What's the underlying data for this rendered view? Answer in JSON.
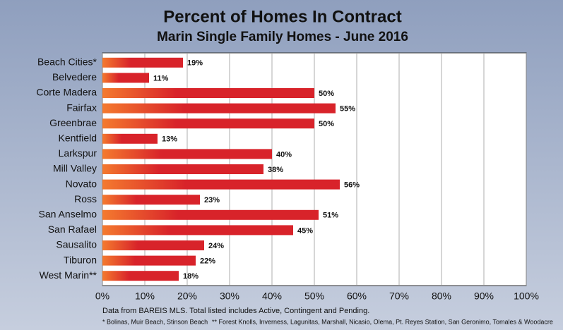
{
  "chart_data": {
    "type": "hbar",
    "title": "Percent of Homes In Contract",
    "subtitle": "Marin Single Family Homes - June 2016",
    "categories": [
      "Beach Cities*",
      "Belvedere",
      "Corte Madera",
      "Fairfax",
      "Greenbrae",
      "Kentfield",
      "Larkspur",
      "Mill Valley",
      "Novato",
      "Ross",
      "San Anselmo",
      "San Rafael",
      "Sausalito",
      "Tiburon",
      "West Marin**"
    ],
    "values": [
      19,
      11,
      50,
      55,
      50,
      13,
      40,
      38,
      56,
      23,
      51,
      45,
      24,
      22,
      18
    ],
    "value_labels": [
      "19%",
      "11%",
      "50%",
      "55%",
      "50%",
      "13%",
      "40%",
      "38%",
      "56%",
      "23%",
      "51%",
      "45%",
      "24%",
      "22%",
      "18%"
    ],
    "color": "#d8232a",
    "gradient_start": "#f47a2e",
    "xlim": [
      0,
      100
    ],
    "xticks": [
      {
        "value": 0,
        "label": "0%"
      },
      {
        "value": 10,
        "label": "10%"
      },
      {
        "value": 20,
        "label": "20%"
      },
      {
        "value": 30,
        "label": "30%"
      },
      {
        "value": 40,
        "label": "40%"
      },
      {
        "value": 50,
        "label": "50%"
      },
      {
        "value": 60,
        "label": "60%"
      },
      {
        "value": 70,
        "label": "70%"
      },
      {
        "value": 80,
        "label": "80%"
      },
      {
        "value": 90,
        "label": "90%"
      },
      {
        "value": 100,
        "label": "100%"
      }
    ],
    "grid": true,
    "notes": [
      "Data from BAREIS MLS. Total listed includes Active, Contingent and Pending.",
      "* Bolinas, Muir Beach, Stinson Beach",
      "** Forest Knolls, Inverness, Lagunitas, Marshall, Nicasio, Olema, Pt. Reyes Station, San Geronimo, Tomales & Woodacre"
    ]
  }
}
